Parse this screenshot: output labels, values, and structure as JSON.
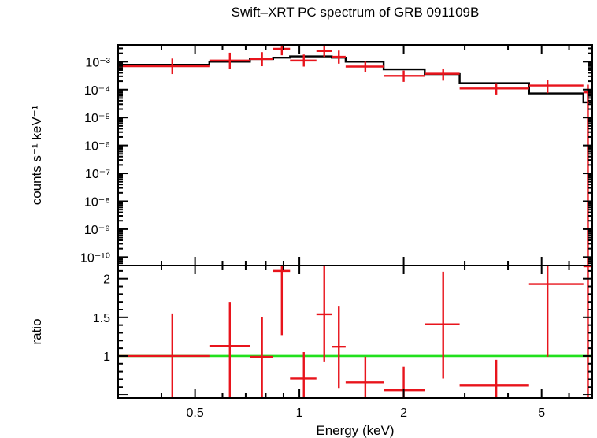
{
  "chart_data": {
    "type": "scatter",
    "title": "Swift–XRT PC spectrum of GRB 091109B",
    "xlabel": "Energy (keV)",
    "x_scale": "log",
    "xlim": [
      0.3,
      7.0
    ],
    "x_ticks": [
      {
        "value": 0.5,
        "label": "0.5"
      },
      {
        "value": 1,
        "label": "1"
      },
      {
        "value": 2,
        "label": "2"
      },
      {
        "value": 5,
        "label": "5"
      }
    ],
    "colors": {
      "data": "#e8141c",
      "model": "#000000",
      "unity": "#22e01e"
    },
    "panels": [
      {
        "id": "spectrum",
        "ylabel": "counts s⁻¹ keV⁻¹",
        "y_scale": "log",
        "ylim": [
          5e-11,
          0.004
        ],
        "y_ticks": [
          {
            "value": 0.001,
            "label": "10⁻³"
          },
          {
            "value": 0.0001,
            "label": "10⁻⁴"
          },
          {
            "value": 1e-05,
            "label": "10⁻⁵"
          },
          {
            "value": 1e-06,
            "label": "10⁻⁶"
          },
          {
            "value": 1e-07,
            "label": "10⁻⁷"
          },
          {
            "value": 1e-08,
            "label": "10⁻⁸"
          },
          {
            "value": 1e-09,
            "label": "10⁻⁹"
          },
          {
            "value": 1e-10,
            "label": "10⁻¹⁰"
          }
        ],
        "data": [
          {
            "x": 0.43,
            "xlo": 0.3,
            "xhi": 0.55,
            "y": 0.00069,
            "ylo": 0.00036,
            "yhi": 0.0013
          },
          {
            "x": 0.63,
            "xlo": 0.55,
            "xhi": 0.72,
            "y": 0.0011,
            "ylo": 0.00056,
            "yhi": 0.0021
          },
          {
            "x": 0.78,
            "xlo": 0.72,
            "xhi": 0.84,
            "y": 0.00125,
            "ylo": 0.00069,
            "yhi": 0.0022
          },
          {
            "x": 0.89,
            "xlo": 0.84,
            "xhi": 0.94,
            "y": 0.0029,
            "ylo": 0.0017,
            "yhi": 0.004
          },
          {
            "x": 1.03,
            "xlo": 0.94,
            "xhi": 1.12,
            "y": 0.0011,
            "ylo": 0.00067,
            "yhi": 0.0018
          },
          {
            "x": 1.18,
            "xlo": 1.12,
            "xhi": 1.24,
            "y": 0.0024,
            "ylo": 0.0015,
            "yhi": 0.0036
          },
          {
            "x": 1.3,
            "xlo": 1.24,
            "xhi": 1.36,
            "y": 0.0015,
            "ylo": 0.00085,
            "yhi": 0.0025
          },
          {
            "x": 1.55,
            "xlo": 1.36,
            "xhi": 1.75,
            "y": 0.00067,
            "ylo": 0.00042,
            "yhi": 0.001
          },
          {
            "x": 2.0,
            "xlo": 1.75,
            "xhi": 2.3,
            "y": 0.00031,
            "ylo": 0.00019,
            "yhi": 0.00048
          },
          {
            "x": 2.6,
            "xlo": 2.3,
            "xhi": 2.9,
            "y": 0.00037,
            "ylo": 0.00021,
            "yhi": 0.00057
          },
          {
            "x": 3.7,
            "xlo": 2.9,
            "xhi": 4.6,
            "y": 0.00011,
            "ylo": 6.7e-05,
            "yhi": 0.00017
          },
          {
            "x": 5.2,
            "xlo": 4.6,
            "xhi": 6.6,
            "y": 0.00014,
            "ylo": 7.5e-05,
            "yhi": 0.00022
          },
          {
            "x": 6.8,
            "xlo": 6.6,
            "xhi": 7.0,
            "y": 8e-05,
            "ylo": 5e-11,
            "yhi": 0.00015
          }
        ],
        "model_steps": [
          {
            "x0": 0.3,
            "x1": 0.55,
            "y": 0.00078
          },
          {
            "x0": 0.55,
            "x1": 0.72,
            "y": 0.001
          },
          {
            "x0": 0.72,
            "x1": 0.84,
            "y": 0.00125
          },
          {
            "x0": 0.84,
            "x1": 0.94,
            "y": 0.0014
          },
          {
            "x0": 0.94,
            "x1": 1.12,
            "y": 0.00155
          },
          {
            "x0": 1.12,
            "x1": 1.24,
            "y": 0.00155
          },
          {
            "x0": 1.24,
            "x1": 1.36,
            "y": 0.0014
          },
          {
            "x0": 1.36,
            "x1": 1.75,
            "y": 0.001
          },
          {
            "x0": 1.75,
            "x1": 2.3,
            "y": 0.00053
          },
          {
            "x0": 2.3,
            "x1": 2.9,
            "y": 0.00036
          },
          {
            "x0": 2.9,
            "x1": 4.6,
            "y": 0.00017
          },
          {
            "x0": 4.6,
            "x1": 6.6,
            "y": 7.3e-05
          },
          {
            "x0": 6.6,
            "x1": 7.0,
            "y": 3.5e-05
          }
        ]
      },
      {
        "id": "ratio",
        "ylabel": "ratio",
        "y_scale": "linear",
        "ylim": [
          0.46,
          2.17
        ],
        "y_ticks": [
          {
            "value": 1,
            "label": "1"
          },
          {
            "value": 1.5,
            "label": "1.5"
          },
          {
            "value": 2,
            "label": "2"
          }
        ],
        "unity": 1,
        "data": [
          {
            "x": 0.43,
            "xlo": 0.3,
            "xhi": 0.55,
            "y": 1.0,
            "ylo": 0.46,
            "yhi": 1.55
          },
          {
            "x": 0.63,
            "xlo": 0.55,
            "xhi": 0.72,
            "y": 1.13,
            "ylo": 0.46,
            "yhi": 1.7
          },
          {
            "x": 0.78,
            "xlo": 0.72,
            "xhi": 0.84,
            "y": 0.99,
            "ylo": 0.46,
            "yhi": 1.5
          },
          {
            "x": 0.89,
            "xlo": 0.84,
            "xhi": 0.94,
            "y": 2.1,
            "ylo": 1.27,
            "yhi": 2.17
          },
          {
            "x": 1.03,
            "xlo": 0.94,
            "xhi": 1.12,
            "y": 0.71,
            "ylo": 0.46,
            "yhi": 1.05
          },
          {
            "x": 1.18,
            "xlo": 1.12,
            "xhi": 1.24,
            "y": 1.54,
            "ylo": 0.93,
            "yhi": 2.17
          },
          {
            "x": 1.3,
            "xlo": 1.24,
            "xhi": 1.36,
            "y": 1.12,
            "ylo": 0.58,
            "yhi": 1.64
          },
          {
            "x": 1.55,
            "xlo": 1.36,
            "xhi": 1.75,
            "y": 0.66,
            "ylo": 0.46,
            "yhi": 0.99
          },
          {
            "x": 2.0,
            "xlo": 1.75,
            "xhi": 2.3,
            "y": 0.56,
            "ylo": 0.46,
            "yhi": 0.86
          },
          {
            "x": 2.6,
            "xlo": 2.3,
            "xhi": 2.9,
            "y": 1.41,
            "ylo": 0.71,
            "yhi": 2.09
          },
          {
            "x": 3.7,
            "xlo": 2.9,
            "xhi": 4.6,
            "y": 0.62,
            "ylo": 0.46,
            "yhi": 0.95
          },
          {
            "x": 5.2,
            "xlo": 4.6,
            "xhi": 6.6,
            "y": 1.93,
            "ylo": 0.99,
            "yhi": 2.17
          },
          {
            "x": 6.8,
            "xlo": 6.6,
            "xhi": 7.0,
            "y": 2.16,
            "ylo": 0.46,
            "yhi": 2.17
          }
        ]
      }
    ]
  }
}
